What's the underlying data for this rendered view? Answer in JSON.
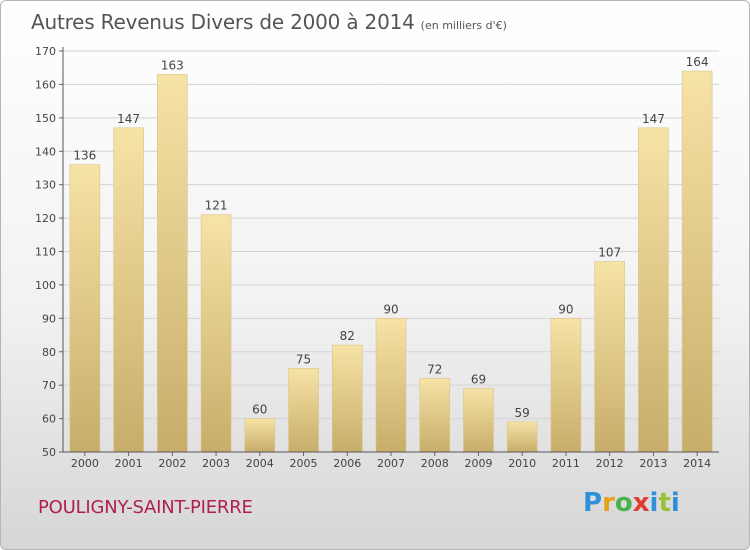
{
  "title": "Autres Revenus Divers de 2000 à 2014",
  "unit_note": "(en milliers d'€)",
  "location": "POULIGNY-SAINT-PIERRE",
  "logo_text": "Proxiti",
  "colors": {
    "bar_light": "#f6e3a6",
    "bar_dark": "#c8ad6a",
    "city": "#b0204e",
    "grid": "#d0d0d0"
  },
  "chart_data": {
    "type": "bar",
    "categories": [
      "2000",
      "2001",
      "2002",
      "2003",
      "2004",
      "2005",
      "2006",
      "2007",
      "2008",
      "2009",
      "2010",
      "2011",
      "2012",
      "2013",
      "2014"
    ],
    "values": [
      136,
      147,
      163,
      121,
      60,
      75,
      82,
      90,
      72,
      69,
      59,
      90,
      107,
      147,
      164
    ],
    "yticks": [
      50,
      60,
      70,
      80,
      90,
      100,
      110,
      120,
      130,
      140,
      150,
      160,
      170
    ],
    "ylim": [
      50,
      170
    ],
    "grid": true
  }
}
